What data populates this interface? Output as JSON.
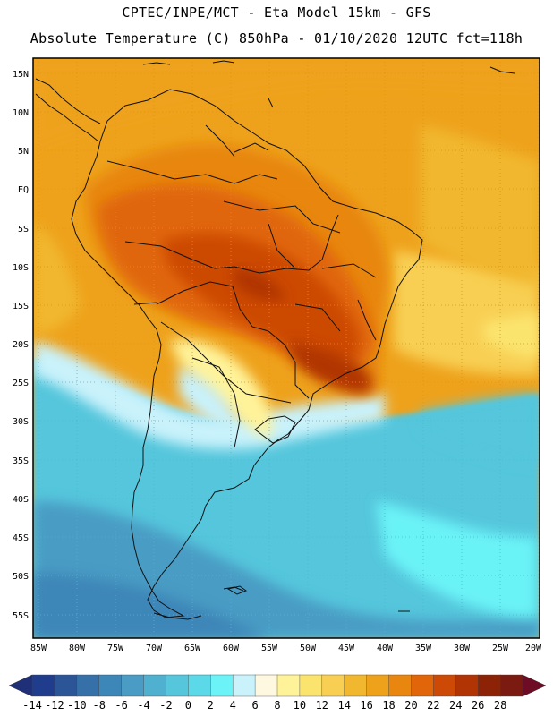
{
  "header": {
    "line1": "CPTEC/INPE/MCT -  Eta Model 15km - GFS",
    "line2": "Absolute Temperature (C) 850hPa - 01/10/2020 12UTC fct=118h"
  },
  "axes": {
    "lat_labels": [
      "15N",
      "10N",
      "5N",
      "EQ",
      "5S",
      "10S",
      "15S",
      "20S",
      "25S",
      "30S",
      "35S",
      "40S",
      "45S",
      "50S",
      "55S"
    ],
    "lon_labels": [
      "85W",
      "80W",
      "75W",
      "70W",
      "65W",
      "60W",
      "55W",
      "50W",
      "45W",
      "40W",
      "35W",
      "30W",
      "25W",
      "20W"
    ]
  },
  "colorbar": {
    "labels": [
      "-14",
      "-12",
      "-10",
      "-8",
      "-6",
      "-4",
      "-2",
      "0",
      "2",
      "4",
      "6",
      "8",
      "10",
      "12",
      "14",
      "16",
      "18",
      "20",
      "22",
      "24",
      "26",
      "28"
    ],
    "colors": [
      "#1f3d8c",
      "#2b5597",
      "#3670a8",
      "#3d86b8",
      "#4a9cc4",
      "#4fb1cf",
      "#55c6dc",
      "#5cd9e8",
      "#6bf3f7",
      "#c9f2fb",
      "#fff8e0",
      "#fff39a",
      "#fbe46e",
      "#f8cf52",
      "#f1b72e",
      "#eea21c",
      "#e8860f",
      "#e06609",
      "#cc4a06",
      "#b03404",
      "#8c2206",
      "#7a1a10"
    ],
    "under_color": "#1f2f78",
    "over_color": "#6e0c25"
  }
}
